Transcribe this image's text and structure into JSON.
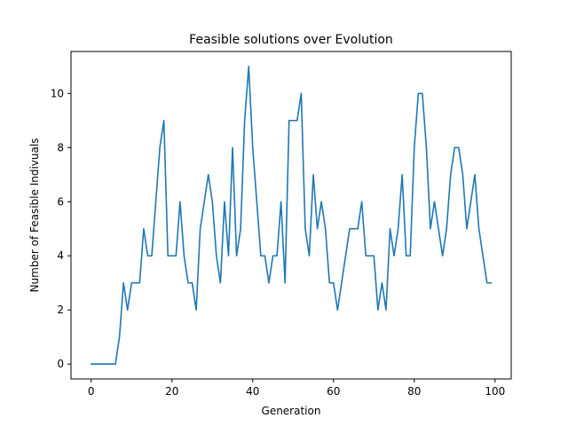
{
  "chart_data": {
    "type": "line",
    "title": "Feasible solutions over Evolution",
    "xlabel": "Generation",
    "ylabel": "Number of Feasible Indivuals",
    "xlim": [
      -5,
      104
    ],
    "ylim": [
      -0.55,
      11.55
    ],
    "xticks": [
      0,
      20,
      40,
      60,
      80,
      100
    ],
    "yticks": [
      0,
      2,
      4,
      6,
      8,
      10
    ],
    "grid": false,
    "series": [
      {
        "color": "#1f77b4",
        "x": [
          0,
          1,
          2,
          3,
          4,
          5,
          6,
          7,
          8,
          9,
          10,
          11,
          12,
          13,
          14,
          15,
          16,
          17,
          18,
          19,
          20,
          21,
          22,
          23,
          24,
          25,
          26,
          27,
          28,
          29,
          30,
          31,
          32,
          33,
          34,
          35,
          36,
          37,
          38,
          39,
          40,
          41,
          42,
          43,
          44,
          45,
          46,
          47,
          48,
          49,
          50,
          51,
          52,
          53,
          54,
          55,
          56,
          57,
          58,
          59,
          60,
          61,
          62,
          63,
          64,
          65,
          66,
          67,
          68,
          69,
          70,
          71,
          72,
          73,
          74,
          75,
          76,
          77,
          78,
          79,
          80,
          81,
          82,
          83,
          84,
          85,
          86,
          87,
          88,
          89,
          90,
          91,
          92,
          93,
          94,
          95,
          96,
          97,
          98,
          99
        ],
        "y": [
          0,
          0,
          0,
          0,
          0,
          0,
          0,
          1,
          3,
          2,
          3,
          3,
          3,
          5,
          4,
          4,
          6,
          8,
          9,
          4,
          4,
          4,
          6,
          4,
          3,
          3,
          2,
          5,
          6,
          7,
          6,
          4,
          3,
          6,
          4,
          8,
          4,
          5,
          9,
          11,
          8,
          6,
          4,
          4,
          3,
          4,
          4,
          6,
          3,
          9,
          9,
          9,
          10,
          5,
          4,
          7,
          5,
          6,
          5,
          3,
          3,
          2,
          3,
          4,
          5,
          5,
          5,
          6,
          4,
          4,
          4,
          2,
          3,
          2,
          5,
          4,
          5,
          7,
          4,
          4,
          8,
          10,
          10,
          8,
          5,
          6,
          5,
          4,
          5,
          7,
          8,
          8,
          7,
          5,
          6,
          7,
          5,
          4,
          3,
          3
        ]
      }
    ]
  }
}
